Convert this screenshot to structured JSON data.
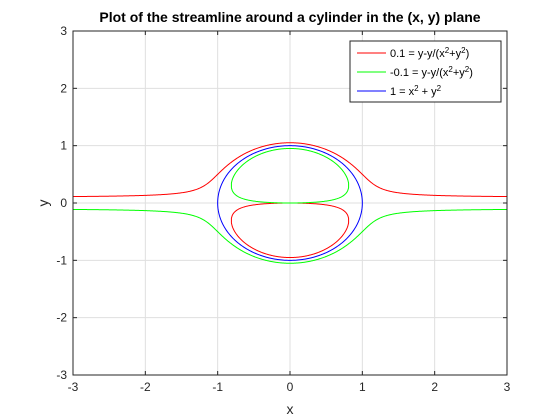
{
  "chart_data": {
    "type": "line",
    "title": "Plot of the streamline around a cylinder in the (x, y) plane",
    "xlabel": "x",
    "ylabel": "y",
    "xlim": [
      -3,
      3
    ],
    "ylim": [
      -3,
      3
    ],
    "xticks": [
      -3,
      -2,
      -1,
      0,
      1,
      2,
      3
    ],
    "yticks": [
      -3,
      -2,
      -1,
      0,
      1,
      2,
      3
    ],
    "grid": true,
    "legend_position": "top-right",
    "series": [
      {
        "name": "0.1 = y-y/(x²+y²)",
        "label_base": "0.1 = y-y/(x",
        "label_mid": "+y",
        "label_end": ")",
        "color": "#ff0000",
        "equation": "y - y/(x^2+y^2) = 0.1"
      },
      {
        "name": "-0.1 = y-y/(x²+y²)",
        "label_base": "-0.1 = y-y/(x",
        "label_mid": "+y",
        "label_end": ")",
        "color": "#00ff00",
        "equation": "y - y/(x^2+y^2) = -0.1"
      },
      {
        "name": "1 = x² + y²",
        "label_base": "1 = x",
        "label_mid": " + y",
        "label_end": "",
        "color": "#0000ff",
        "equation": "x^2 + y^2 = 1"
      }
    ]
  }
}
